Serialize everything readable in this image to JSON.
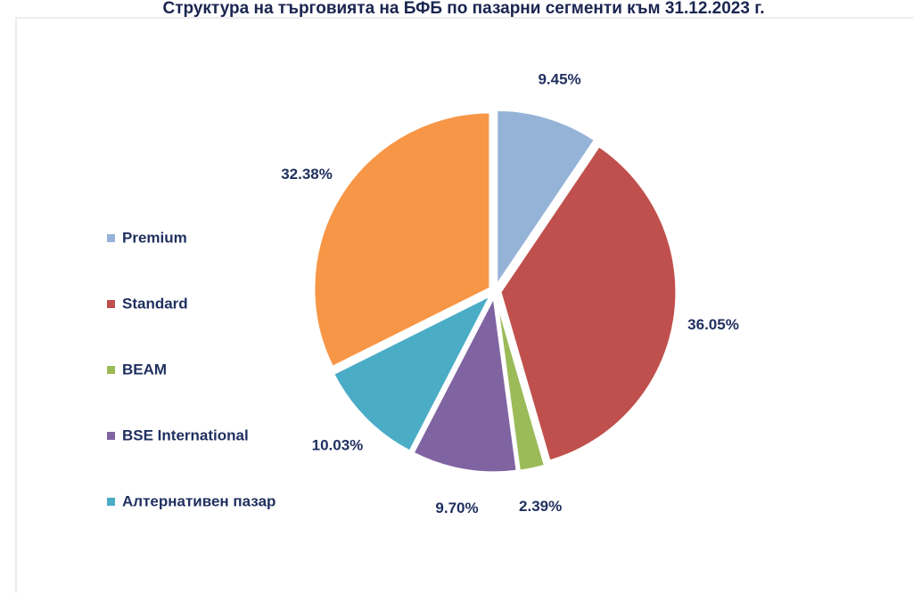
{
  "chart_data": {
    "type": "pie",
    "title": "Структура на търговията на БФБ по пазарни сегменти към 31.12.2023 г.",
    "categories": [
      "Premium",
      "Standard",
      "BEAM",
      "BSE International",
      "Алтернативен пазар",
      null
    ],
    "values": [
      9.45,
      36.05,
      2.39,
      9.7,
      10.03,
      32.38
    ],
    "value_labels": [
      "9.45%",
      "36.05%",
      "2.39%",
      "9.70%",
      "10.03%",
      "32.38%"
    ],
    "colors": [
      "#95b3d7",
      "#c0504d",
      "#9bbb59",
      "#8064a2",
      "#4bacc6",
      "#f79646"
    ],
    "legend": "left"
  }
}
